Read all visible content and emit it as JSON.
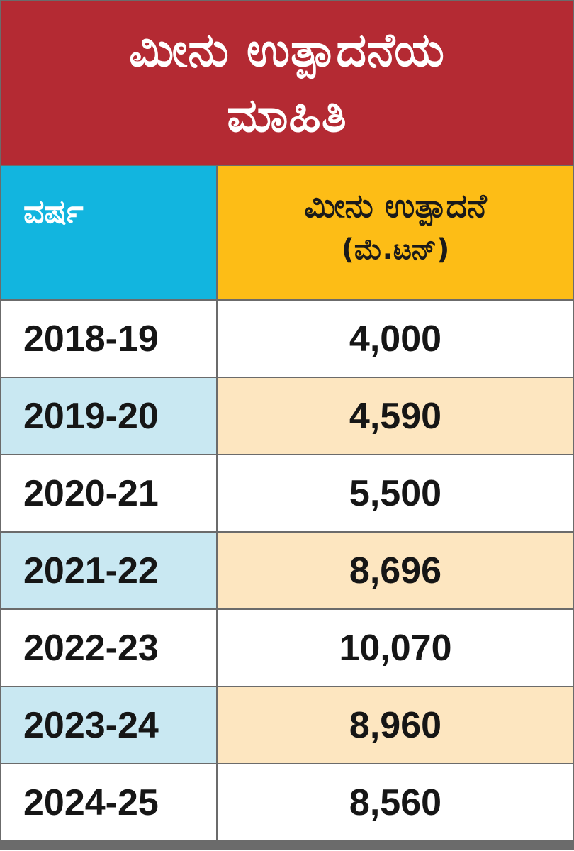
{
  "title": {
    "line1": "ಮೀನು ಉತ್ಪಾದನೆಯ",
    "line2": "ಮಾಹಿತಿ"
  },
  "header": {
    "year_label": "ವರ್ಷ",
    "value_label_line1": "ಮೀನು ಉತ್ಪಾದನೆ",
    "value_label_line2": "(ಮೆ.ಟನ್)"
  },
  "colors": {
    "title_bg": "#b42a33",
    "year_header_bg": "#12b5df",
    "value_header_bg": "#fdbd16",
    "row_plain": "#ffffff",
    "row_alt_year": "#c9e8f2",
    "row_alt_value": "#fde6c0"
  },
  "chart_data": {
    "type": "table",
    "title": "ಮೀನು ಉತ್ಪಾದನೆಯ ಮಾಹಿತಿ",
    "columns": [
      "ವರ್ಷ",
      "ಮೀನು ಉತ್ಪಾದನೆ (ಮೆ.ಟನ್)"
    ],
    "rows": [
      {
        "year": "2018-19",
        "value": "4,000"
      },
      {
        "year": "2019-20",
        "value": "4,590"
      },
      {
        "year": "2020-21",
        "value": "5,500"
      },
      {
        "year": "2021-22",
        "value": "8,696"
      },
      {
        "year": "2022-23",
        "value": "10,070"
      },
      {
        "year": "2023-24",
        "value": "8,960"
      },
      {
        "year": "2024-25",
        "value": "8,560"
      }
    ]
  }
}
